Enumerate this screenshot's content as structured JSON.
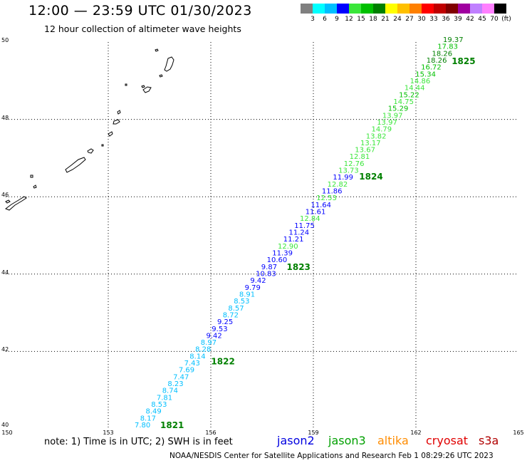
{
  "title": "12:00 — 23:59 UTC 01/30/2023",
  "subtitle": "12 hour collection of altimeter wave heights",
  "colorbar": {
    "colors": [
      "#808080",
      "#00ffff",
      "#00bfff",
      "#0000ff",
      "#3ae63a",
      "#00c000",
      "#008000",
      "#ffff00",
      "#ffc000",
      "#ff8000",
      "#ff0000",
      "#c00000",
      "#800000",
      "#a000a0",
      "#c080ff",
      "#ff80ff",
      "#000000"
    ],
    "labels": [
      "3",
      "6",
      "9",
      "12",
      "15",
      "18",
      "21",
      "24",
      "27",
      "30",
      "33",
      "36",
      "39",
      "42",
      "45",
      "70",
      "(ft)"
    ]
  },
  "map": {
    "lat_ticks": [
      "50",
      "48",
      "46",
      "44",
      "42",
      "40"
    ],
    "lon_ticks": [
      "150",
      "153",
      "156",
      "159",
      "162",
      "165"
    ],
    "lat_range": [
      40,
      50
    ],
    "lon_range": [
      150,
      165
    ],
    "grid": "dotted"
  },
  "times": [
    {
      "label": "1821",
      "color": "#008000"
    },
    {
      "label": "1822",
      "color": "#008000"
    },
    {
      "label": "1823",
      "color": "#008000"
    },
    {
      "label": "1824",
      "color": "#008000"
    },
    {
      "label": "1825",
      "color": "#008000"
    }
  ],
  "measurements": [
    {
      "v": "7.80",
      "c": "#00bfff"
    },
    {
      "v": "8.17",
      "c": "#00bfff"
    },
    {
      "v": "8.49",
      "c": "#00bfff"
    },
    {
      "v": "8.53",
      "c": "#00bfff"
    },
    {
      "v": "7.81",
      "c": "#00bfff"
    },
    {
      "v": "8.74",
      "c": "#00bfff"
    },
    {
      "v": "8.23",
      "c": "#00bfff"
    },
    {
      "v": "7.47",
      "c": "#00bfff"
    },
    {
      "v": "7.69",
      "c": "#00bfff"
    },
    {
      "v": "7.43",
      "c": "#00bfff"
    },
    {
      "v": "8.14",
      "c": "#00bfff"
    },
    {
      "v": "8.28",
      "c": "#00bfff"
    },
    {
      "v": "8.97",
      "c": "#00bfff"
    },
    {
      "v": "9.42",
      "c": "#0000ff"
    },
    {
      "v": "9.53",
      "c": "#0000ff"
    },
    {
      "v": "9.25",
      "c": "#0000ff"
    },
    {
      "v": "8.72",
      "c": "#00bfff"
    },
    {
      "v": "8.57",
      "c": "#00bfff"
    },
    {
      "v": "8.53",
      "c": "#00bfff"
    },
    {
      "v": "8.91",
      "c": "#00bfff"
    },
    {
      "v": "9.79",
      "c": "#0000ff"
    },
    {
      "v": "9.42",
      "c": "#0000ff"
    },
    {
      "v": "10.83",
      "c": "#0000ff"
    },
    {
      "v": "9.87",
      "c": "#0000ff"
    },
    {
      "v": "10.60",
      "c": "#0000ff"
    },
    {
      "v": "11.39",
      "c": "#0000ff"
    },
    {
      "v": "12.90",
      "c": "#3ae63a"
    },
    {
      "v": "11.21",
      "c": "#0000ff"
    },
    {
      "v": "11.24",
      "c": "#0000ff"
    },
    {
      "v": "11.75",
      "c": "#0000ff"
    },
    {
      "v": "12.84",
      "c": "#3ae63a"
    },
    {
      "v": "11.61",
      "c": "#0000ff"
    },
    {
      "v": "11.64",
      "c": "#0000ff"
    },
    {
      "v": "12.53",
      "c": "#3ae63a"
    },
    {
      "v": "11.86",
      "c": "#0000ff"
    },
    {
      "v": "12.82",
      "c": "#3ae63a"
    },
    {
      "v": "11.99",
      "c": "#0000ff"
    },
    {
      "v": "13.73",
      "c": "#3ae63a"
    },
    {
      "v": "12.76",
      "c": "#3ae63a"
    },
    {
      "v": "12.81",
      "c": "#3ae63a"
    },
    {
      "v": "13.67",
      "c": "#3ae63a"
    },
    {
      "v": "13.17",
      "c": "#3ae63a"
    },
    {
      "v": "13.82",
      "c": "#3ae63a"
    },
    {
      "v": "14.79",
      "c": "#3ae63a"
    },
    {
      "v": "13.97",
      "c": "#3ae63a"
    },
    {
      "v": "13.97",
      "c": "#3ae63a"
    },
    {
      "v": "15.29",
      "c": "#00c000"
    },
    {
      "v": "14.75",
      "c": "#3ae63a"
    },
    {
      "v": "15.22",
      "c": "#00c000"
    },
    {
      "v": "14.44",
      "c": "#3ae63a"
    },
    {
      "v": "14.86",
      "c": "#3ae63a"
    },
    {
      "v": "15.34",
      "c": "#00c000"
    },
    {
      "v": "16.72",
      "c": "#00c000"
    },
    {
      "v": "18.26",
      "c": "#008000"
    },
    {
      "v": "18.26",
      "c": "#008000"
    },
    {
      "v": "17.83",
      "c": "#00c000"
    },
    {
      "v": "19.37",
      "c": "#008000"
    }
  ],
  "note": "note: 1) Time is in UTC; 2) SWH is in feet",
  "legend": [
    {
      "name": "jason2",
      "color": "#0000e0"
    },
    {
      "name": "jason3",
      "color": "#00a000"
    },
    {
      "name": "altika",
      "color": "#ff8c00"
    },
    {
      "name": "cryosat",
      "color": "#e00000"
    },
    {
      "name": "s3a",
      "color": "#b00000"
    }
  ],
  "credit": "NOAA/NESDIS Center for Satellite Applications and Research   Feb  1 08:29:26 UTC 2023"
}
